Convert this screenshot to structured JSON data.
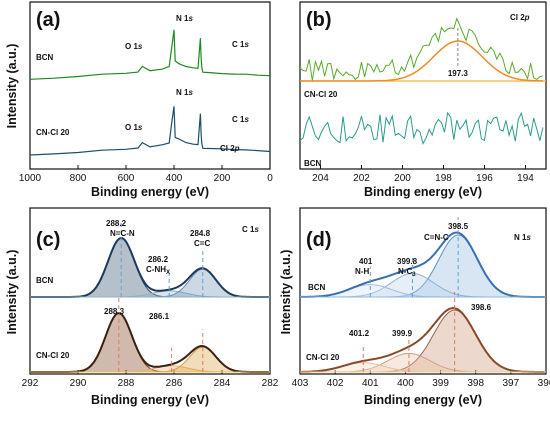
{
  "chart_data": [
    {
      "panel": "(a)",
      "type": "line",
      "xlabel": "Binding energy (eV)",
      "ylabel": "Intensity (a.u.)",
      "xlim": [
        1000,
        0
      ],
      "xticks": [
        1000,
        800,
        600,
        400,
        200,
        0
      ],
      "series": [
        {
          "name": "BCN",
          "color": "#1e8a1e",
          "x": [
            1000,
            900,
            800,
            700,
            600,
            550,
            532,
            500,
            450,
            420,
            410,
            400,
            395,
            380,
            350,
            320,
            300,
            290,
            287,
            284,
            280,
            250,
            200,
            150,
            100,
            50,
            0
          ],
          "y": [
            0.09,
            0.11,
            0.14,
            0.16,
            0.19,
            0.21,
            0.31,
            0.23,
            0.26,
            0.3,
            0.62,
            0.93,
            0.4,
            0.36,
            0.31,
            0.28,
            0.27,
            0.8,
            0.47,
            0.29,
            0.21,
            0.2,
            0.19,
            0.18,
            0.17,
            0.16,
            0.15
          ]
        },
        {
          "name": "CN-Cl 20",
          "color": "#1c4e6e",
          "x": [
            1000,
            900,
            800,
            700,
            600,
            550,
            532,
            500,
            450,
            420,
            410,
            400,
            395,
            380,
            350,
            320,
            300,
            290,
            287,
            284,
            280,
            250,
            200,
            150,
            100,
            50,
            0
          ],
          "y": [
            0.09,
            0.11,
            0.14,
            0.16,
            0.19,
            0.21,
            0.31,
            0.23,
            0.26,
            0.3,
            0.62,
            0.93,
            0.4,
            0.36,
            0.31,
            0.28,
            0.27,
            0.8,
            0.47,
            0.29,
            0.21,
            0.2,
            0.2,
            0.18,
            0.17,
            0.16,
            0.15
          ]
        }
      ],
      "annotations": [
        "O 1s",
        "N 1s",
        "C 1s",
        "O 1s",
        "N 1s",
        "C 1s",
        "Cl 2p"
      ]
    },
    {
      "panel": "(b)",
      "type": "line",
      "title": "Cl 2p",
      "xlabel": "Binding energy (eV)",
      "ylabel": "",
      "xlim": [
        205,
        193
      ],
      "xticks": [
        204,
        202,
        200,
        198,
        196,
        194
      ],
      "peak_label": "197.3",
      "series": [
        {
          "name": "CN-Cl 20",
          "color": "#5aaa2a",
          "note": "noisy spectrum with fitted peak at 197.3 eV"
        },
        {
          "name": "fit",
          "color": "#f08a24",
          "center": 197.3,
          "fwhm": 2.8
        },
        {
          "name": "BCN",
          "color": "#2a9c8c",
          "note": "noise, no peak"
        }
      ]
    },
    {
      "panel": "(c)",
      "type": "line",
      "title": "C 1s",
      "xlabel": "Binding energy (eV)",
      "ylabel": "Intensity (a.u.)",
      "xlim": [
        292,
        282
      ],
      "xticks": [
        292,
        290,
        288,
        286,
        284,
        282
      ],
      "series": [
        {
          "name": "BCN",
          "color": "#1c3a5e",
          "peaks": [
            {
              "center": 288.2,
              "amp": 0.95,
              "sigma": 0.55,
              "label": "288.2 N=C-N"
            },
            {
              "center": 286.2,
              "amp": 0.1,
              "sigma": 0.7,
              "label": "286.2 C-NHx"
            },
            {
              "center": 284.8,
              "amp": 0.45,
              "sigma": 0.55,
              "label": "284.8 C=C"
            }
          ]
        },
        {
          "name": "CN-Cl 20",
          "color": "#6a2a10",
          "peaks": [
            {
              "center": 288.3,
              "amp": 0.95,
              "sigma": 0.55,
              "label": "288.3"
            },
            {
              "center": 286.1,
              "amp": 0.1,
              "sigma": 0.7,
              "label": "286.1"
            },
            {
              "center": 284.8,
              "amp": 0.4,
              "sigma": 0.55,
              "label": ""
            }
          ]
        }
      ]
    },
    {
      "panel": "(d)",
      "type": "line",
      "title": "N 1s",
      "xlabel": "Binding energy (eV)",
      "ylabel": "Intensity (a.u.)",
      "xlim": [
        403,
        396
      ],
      "xticks": [
        403,
        402,
        401,
        400,
        399,
        398,
        397,
        396
      ],
      "series": [
        {
          "name": "BCN",
          "color": "#3a6fb0",
          "peaks": [
            {
              "center": 398.5,
              "amp": 1.0,
              "sigma": 0.55,
              "label": "398.5 C=N-C"
            },
            {
              "center": 399.8,
              "amp": 0.38,
              "sigma": 0.6,
              "label": "399.8 N-C3"
            },
            {
              "center": 401.0,
              "amp": 0.2,
              "sigma": 0.6,
              "label": "401 N-H"
            }
          ]
        },
        {
          "name": "CN-Cl 20",
          "color": "#8a4a2a",
          "peaks": [
            {
              "center": 398.6,
              "amp": 1.0,
              "sigma": 0.6,
              "label": "398.6"
            },
            {
              "center": 399.9,
              "amp": 0.3,
              "sigma": 0.6,
              "label": "399.9"
            },
            {
              "center": 401.2,
              "amp": 0.15,
              "sigma": 0.6,
              "label": "401.2"
            }
          ]
        }
      ]
    }
  ]
}
